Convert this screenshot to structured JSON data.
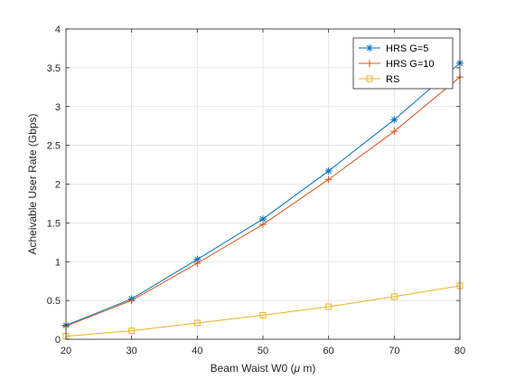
{
  "chart_data": {
    "type": "line",
    "xlabel": "Beam Waist W0 ($\\mu$ m)",
    "xlabel_parts": {
      "pre": "Beam Waist W0 (",
      "symbol": "μ",
      "post": " m)"
    },
    "ylabel": "Acheivable User Rate (Gbps)",
    "xlim": [
      20,
      80
    ],
    "ylim": [
      0,
      4
    ],
    "xticks": [
      "20",
      "30",
      "40",
      "50",
      "60",
      "70",
      "80"
    ],
    "yticks": [
      "0",
      "0.5",
      "1",
      "1.5",
      "2",
      "2.5",
      "3",
      "3.5",
      "4"
    ],
    "grid": true,
    "legend_position": "top-right",
    "x": [
      20,
      30,
      40,
      50,
      60,
      70,
      80
    ],
    "series": [
      {
        "name": "HRS G=5",
        "values": [
          0.18,
          0.52,
          1.03,
          1.55,
          2.17,
          2.83,
          3.56
        ],
        "color": "#0072BD",
        "marker": "asterisk"
      },
      {
        "name": "HRS G=10",
        "values": [
          0.17,
          0.5,
          0.98,
          1.48,
          2.06,
          2.68,
          3.38
        ],
        "color": "#D95319",
        "marker": "plus"
      },
      {
        "name": "RS",
        "values": [
          0.04,
          0.11,
          0.21,
          0.31,
          0.42,
          0.55,
          0.69
        ],
        "color": "#EDB120",
        "marker": "square"
      }
    ]
  }
}
